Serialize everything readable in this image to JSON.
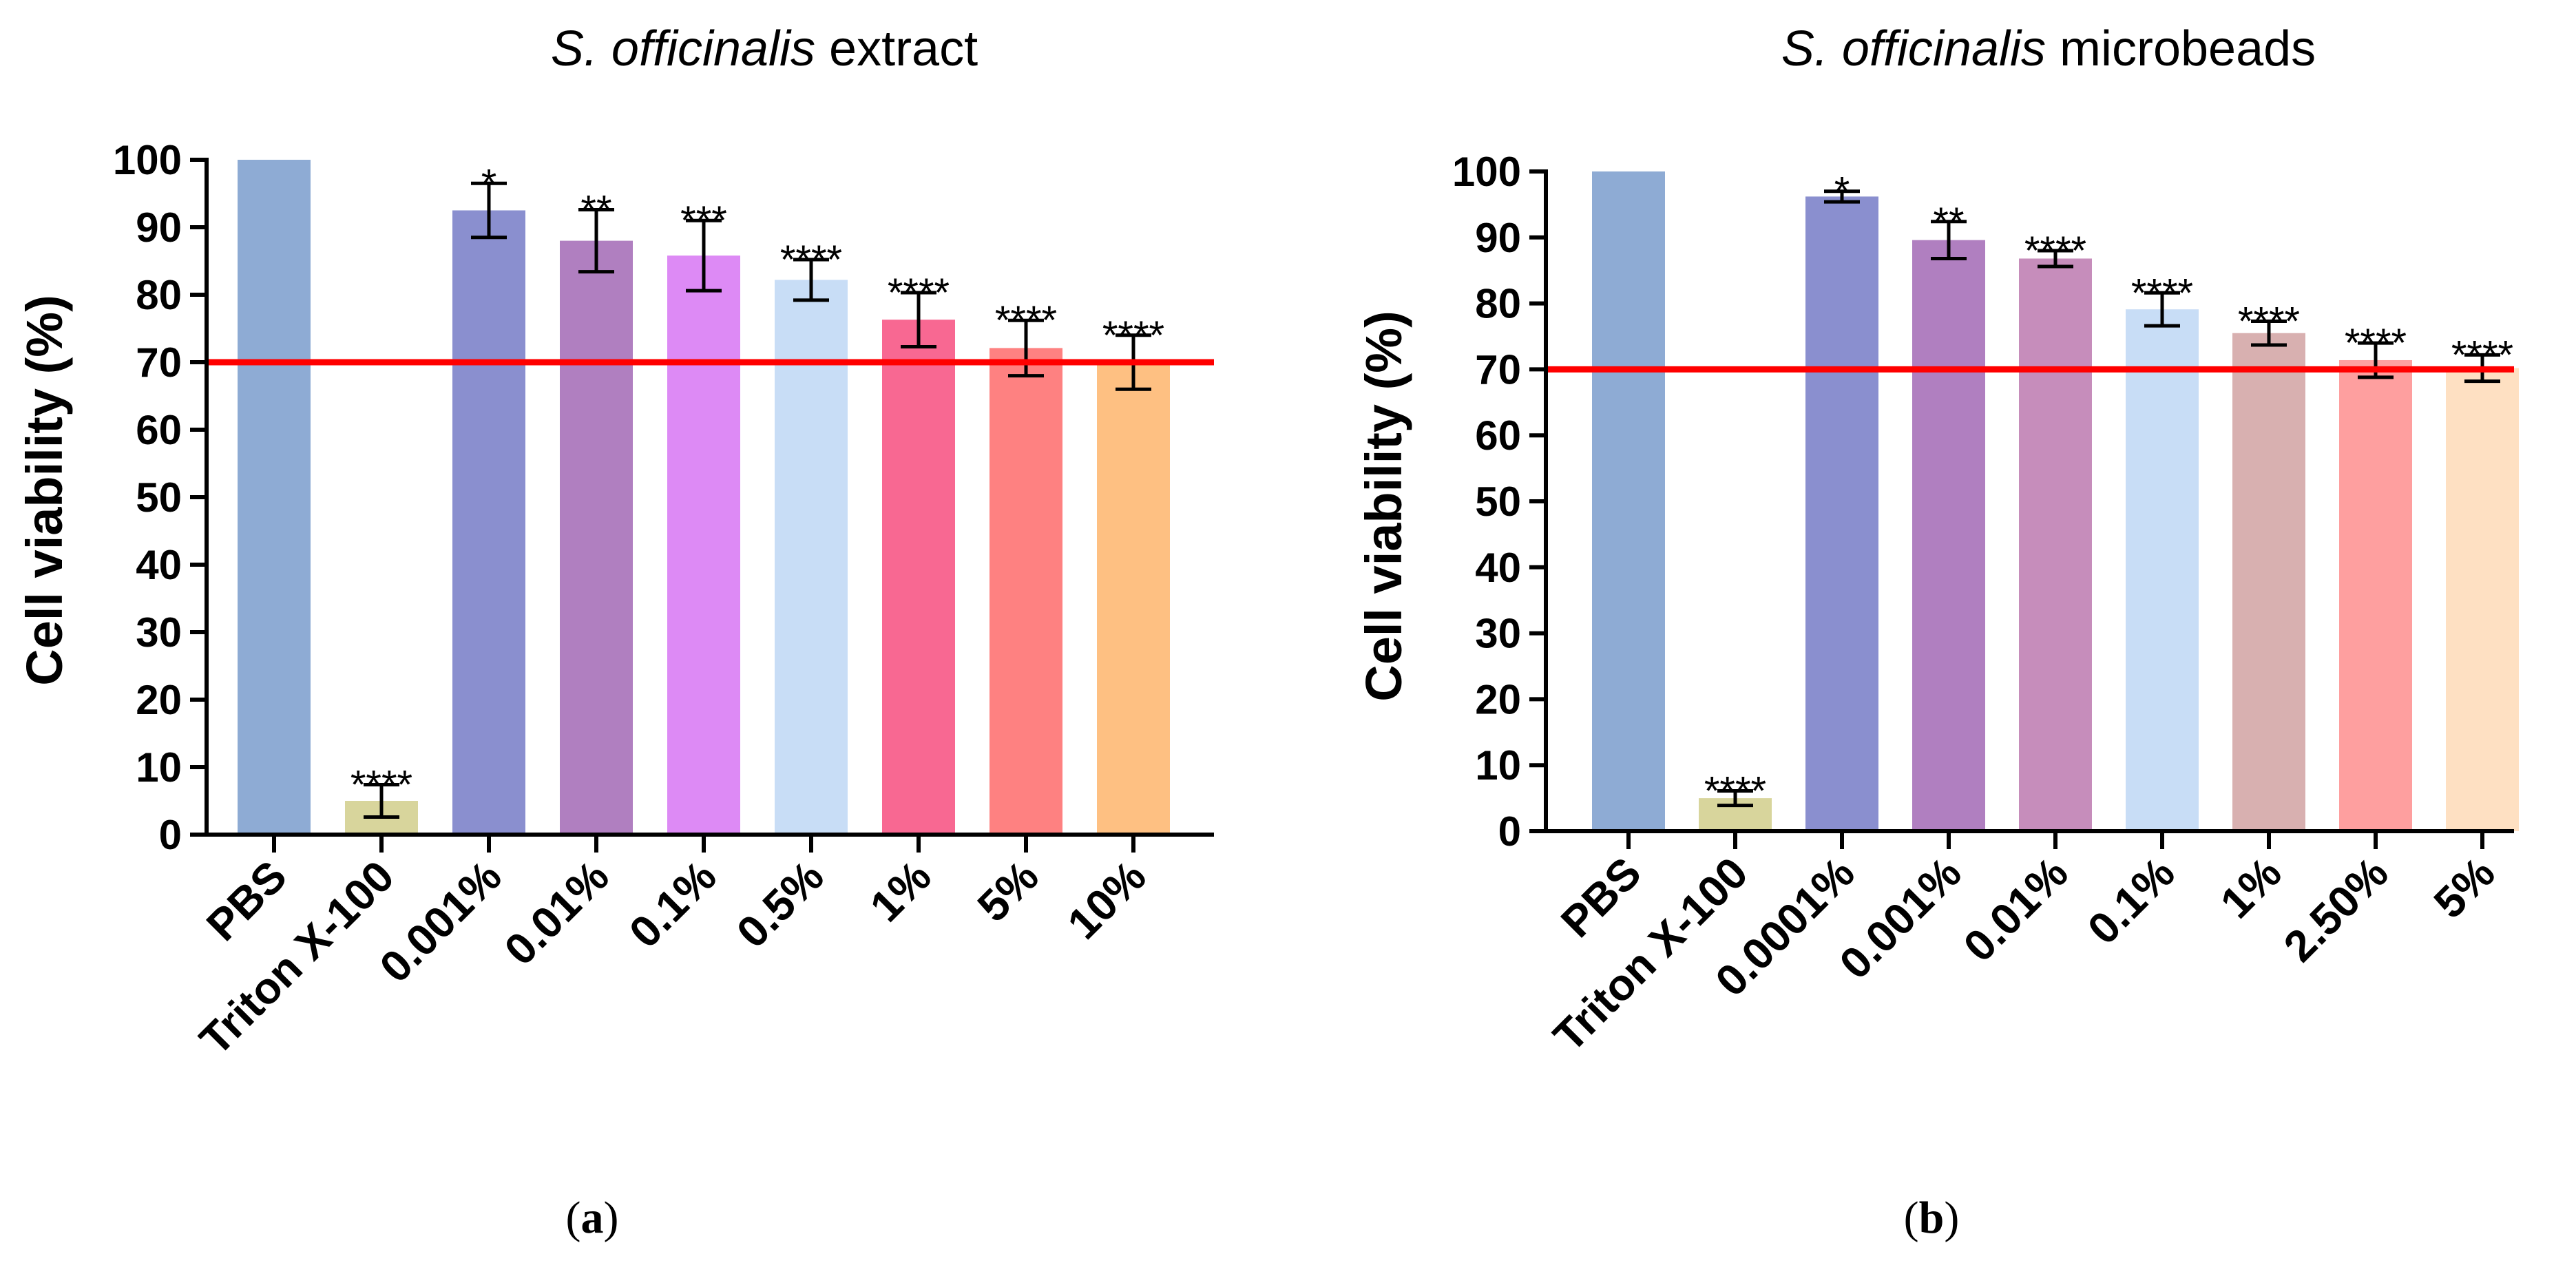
{
  "chart_data": [
    {
      "type": "bar",
      "title_italic": "S. officinalis",
      "title_rest": " extract",
      "ylabel": "Cell viability (%)",
      "xlabel": "",
      "ylim": [
        0,
        100
      ],
      "yticks": [
        "0",
        "10",
        "20",
        "30",
        "40",
        "50",
        "60",
        "70",
        "80",
        "90",
        "100"
      ],
      "categories": [
        "PBS",
        "Triton X-100",
        "0.001%",
        "0.01%",
        "0.1%",
        "0.5%",
        "1%",
        "5%",
        "10%"
      ],
      "values": [
        100,
        5,
        92.5,
        88,
        85.8,
        82.2,
        76.3,
        72.1,
        70
      ],
      "errors": [
        0,
        2.4,
        4,
        4.6,
        5.2,
        3,
        4,
        4.1,
        4
      ],
      "significance": [
        "",
        "****",
        "*",
        "**",
        "***",
        "****",
        "****",
        "****",
        "****"
      ],
      "colors": [
        "#8eabd4",
        "#d8d59c",
        "#8a8fcf",
        "#b07fc0",
        "#dd8af5",
        "#c8ddf6",
        "#f86892",
        "#fe8181",
        "#fec082"
      ],
      "threshold": 70,
      "threshold_color": "#ff0000",
      "caption": "a"
    },
    {
      "type": "bar",
      "title_italic": "S. officinalis",
      "title_rest": " microbeads",
      "ylabel": "Cell viability (%)",
      "xlabel": "",
      "ylim": [
        0,
        100
      ],
      "yticks": [
        "0",
        "10",
        "20",
        "30",
        "40",
        "50",
        "60",
        "70",
        "80",
        "90",
        "100"
      ],
      "categories": [
        "PBS",
        "Triton X-100",
        "0.0001%",
        "0.001%",
        "0.01%",
        "0.1%",
        "1%",
        "2.50%",
        "5%"
      ],
      "values": [
        100,
        5,
        96.2,
        89.6,
        86.8,
        79.1,
        75.5,
        71.4,
        70.2
      ],
      "errors": [
        0,
        1.1,
        0.8,
        2.8,
        1.2,
        2.5,
        1.8,
        2.6,
        2
      ],
      "significance": [
        "",
        "****",
        "*",
        "**",
        "****",
        "****",
        "****",
        "****",
        "****"
      ],
      "colors": [
        "#8eabd4",
        "#d8d59c",
        "#8a8fcf",
        "#b07fc0",
        "#c68dbb",
        "#c8ddf6",
        "#d8b0b0",
        "#fe9f9f",
        "#fee0c2"
      ],
      "threshold": 70,
      "threshold_color": "#ff0000",
      "caption": "b"
    }
  ]
}
